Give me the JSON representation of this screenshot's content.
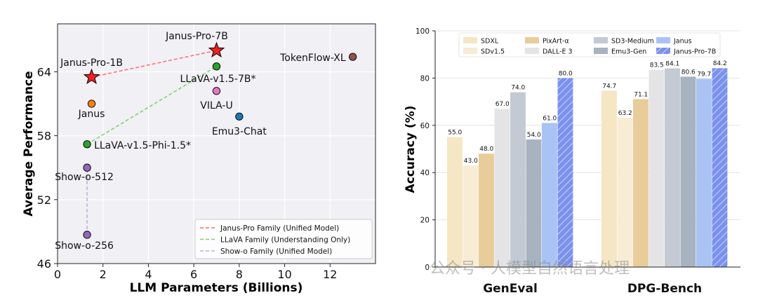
{
  "chart_data": [
    {
      "type": "scatter",
      "xlabel": "LLM Parameters (Billions)",
      "ylabel": "Average Performance",
      "xlim": [
        0,
        14
      ],
      "ylim": [
        46,
        68.5
      ],
      "xticks": [
        "0",
        "2",
        "4",
        "6",
        "8",
        "10",
        "12"
      ],
      "yticks": [
        "46",
        "52",
        "58",
        "64"
      ],
      "grid": true,
      "legend_position": "bottom-right",
      "points": [
        {
          "label": "Janus-Pro-7B",
          "x": 7.0,
          "y": 66.0,
          "color": "#ee2222",
          "marker": "star"
        },
        {
          "label": "Janus-Pro-1B",
          "x": 1.5,
          "y": 63.5,
          "color": "#ee2222",
          "marker": "star"
        },
        {
          "label": "TokenFlow-XL",
          "x": 13.0,
          "y": 65.4,
          "color": "#8c564b",
          "marker": "circle"
        },
        {
          "label": "LLaVA-v1.5-7B*",
          "x": 7.0,
          "y": 64.5,
          "color": "#2ca02c",
          "marker": "circle"
        },
        {
          "label": "VILA-U",
          "x": 7.0,
          "y": 62.2,
          "color": "#e377c2",
          "marker": "circle"
        },
        {
          "label": "Janus",
          "x": 1.5,
          "y": 61.0,
          "color": "#ff7f0e",
          "marker": "circle"
        },
        {
          "label": "Emu3-Chat",
          "x": 8.0,
          "y": 59.8,
          "color": "#1f77b4",
          "marker": "circle"
        },
        {
          "label": "LLaVA-v1.5-Phi-1.5*",
          "x": 1.3,
          "y": 57.2,
          "color": "#2ca02c",
          "marker": "circle"
        },
        {
          "label": "Show-o-512",
          "x": 1.3,
          "y": 55.0,
          "color": "#9467bd",
          "marker": "circle"
        },
        {
          "label": "Show-o-256",
          "x": 1.3,
          "y": 48.7,
          "color": "#9467bd",
          "marker": "circle"
        }
      ],
      "lines": [
        {
          "name": "Janus-Pro Family (Unified Model)",
          "color": "#ff6b6b",
          "from": [
            1.5,
            63.5
          ],
          "to": [
            7.0,
            66.0
          ]
        },
        {
          "name": "LLaVA Family (Understanding Only)",
          "color": "#7fcf6f",
          "from": [
            1.3,
            57.2
          ],
          "to": [
            7.0,
            64.5
          ]
        },
        {
          "name": "Show-o Family (Unified Model)",
          "color": "#c5a8e0",
          "from": [
            1.3,
            48.7
          ],
          "to": [
            1.3,
            55.0
          ]
        }
      ]
    },
    {
      "type": "bar",
      "ylabel": "Accuracy (%)",
      "ylim": [
        0,
        100
      ],
      "yticks": [
        "0",
        "20",
        "40",
        "60",
        "80",
        "100"
      ],
      "categories": [
        "GenEval",
        "DPG-Bench"
      ],
      "legend_position": "top",
      "series": [
        {
          "name": "SDXL",
          "color": "#f5e6c4",
          "hatch": false,
          "values": [
            55.0,
            74.7
          ],
          "labels": [
            "55.0",
            "74.7"
          ]
        },
        {
          "name": "SDv1.5",
          "color": "#f8ecd5",
          "hatch": false,
          "values": [
            43.0,
            63.2
          ],
          "labels": [
            "43.0",
            "63.2"
          ]
        },
        {
          "name": "PixArt-α",
          "color": "#e8cc9a",
          "hatch": false,
          "values": [
            48.0,
            71.1
          ],
          "labels": [
            "48.0",
            "71.1"
          ]
        },
        {
          "name": "DALL-E 3",
          "color": "#e4e4e6",
          "hatch": false,
          "values": [
            67.0,
            83.5
          ],
          "labels": [
            "67.0",
            "83.5"
          ]
        },
        {
          "name": "SD3-Medium",
          "color": "#c3cad4",
          "hatch": false,
          "values": [
            74.0,
            84.1
          ],
          "labels": [
            "74.0",
            "84.1"
          ]
        },
        {
          "name": "Emu3-Gen",
          "color": "#a7b3c1",
          "hatch": false,
          "values": [
            54.0,
            80.6
          ],
          "labels": [
            "54.0",
            "80.6"
          ]
        },
        {
          "name": "Janus",
          "color": "#a9c3f5",
          "hatch": false,
          "values": [
            61.0,
            79.7
          ],
          "labels": [
            "61.0",
            "79.7"
          ]
        },
        {
          "name": "Janus-Pro-7B",
          "color": "#7b91ee",
          "hatch": true,
          "values": [
            80.0,
            84.2
          ],
          "labels": [
            "80.0",
            "84.2"
          ]
        }
      ]
    }
  ],
  "watermark": "公众号 · 人模型自然语言处理"
}
